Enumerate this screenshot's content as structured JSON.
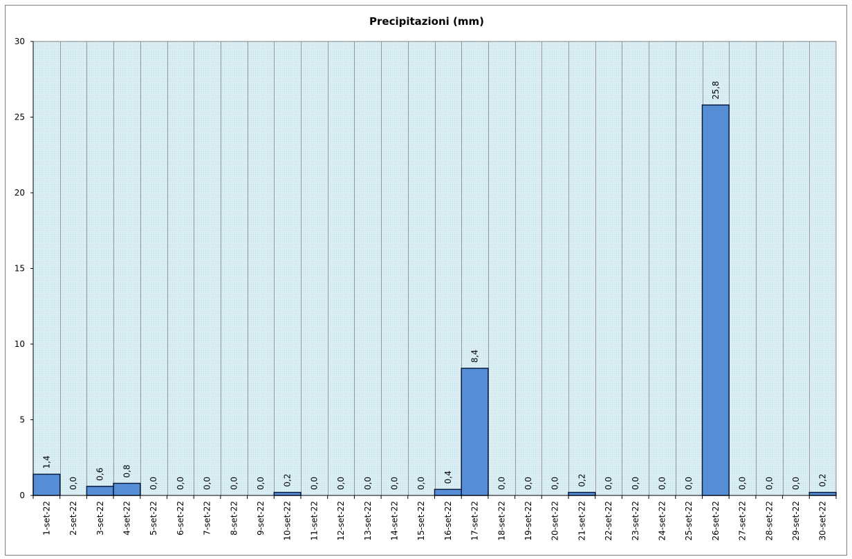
{
  "chart_data": {
    "type": "bar",
    "title": "Precipitazioni  (mm)",
    "xlabel": "",
    "ylabel": "",
    "ylim": [
      0,
      30
    ],
    "yticks": [
      "0",
      "5",
      "10",
      "15",
      "20",
      "25",
      "30"
    ],
    "grid": "vertical",
    "legend": "none",
    "categories": [
      "1-set-22",
      "2-set-22",
      "3-set-22",
      "4-set-22",
      "5-set-22",
      "6-set-22",
      "7-set-22",
      "8-set-22",
      "9-set-22",
      "10-set-22",
      "11-set-22",
      "12-set-22",
      "13-set-22",
      "14-set-22",
      "15-set-22",
      "16-set-22",
      "17-set-22",
      "18-set-22",
      "19-set-22",
      "20-set-22",
      "21-set-22",
      "22-set-22",
      "23-set-22",
      "24-set-22",
      "25-set-22",
      "26-set-22",
      "27-set-22",
      "28-set-22",
      "29-set-22",
      "30-set-22"
    ],
    "values": [
      1.4,
      0.0,
      0.6,
      0.8,
      0.0,
      0.0,
      0.0,
      0.0,
      0.0,
      0.2,
      0.0,
      0.0,
      0.0,
      0.0,
      0.0,
      0.4,
      8.4,
      0.0,
      0.0,
      0.0,
      0.2,
      0.0,
      0.0,
      0.0,
      0.0,
      25.8,
      0.0,
      0.0,
      0.0,
      0.2
    ],
    "data_labels": [
      "1,4",
      "0,0",
      "0,6",
      "0,8",
      "0,0",
      "0,0",
      "0,0",
      "0,0",
      "0,0",
      "0,2",
      "0,0",
      "0,0",
      "0,0",
      "0,0",
      "0,0",
      "0,4",
      "8,4",
      "0,0",
      "0,0",
      "0,0",
      "0,2",
      "0,0",
      "0,0",
      "0,0",
      "0,0",
      "25,8",
      "0,0",
      "0,0",
      "0,0",
      "0,2"
    ],
    "colors": {
      "bar_fill": "#558ed5",
      "bar_stroke": "#0a1a40",
      "plot_bg": "#daeef3",
      "plot_dots": "#b7dde8",
      "grid": "#969696"
    }
  }
}
